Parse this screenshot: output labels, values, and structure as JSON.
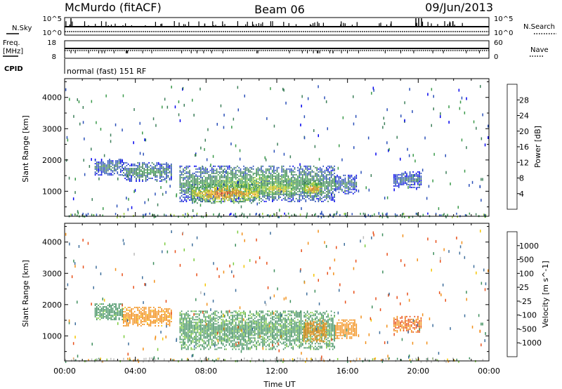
{
  "header": {
    "station": "McMurdo (fitACF)",
    "beam": "Beam 06",
    "date": "09/Jun/2013"
  },
  "status_panels": {
    "nsky_label": "N.Sky",
    "nsky_ticks": [
      "10^5",
      "10^0"
    ],
    "nsearch_label": "N.Search",
    "nsearch_ticks": [
      "10^5",
      "10^0"
    ],
    "freq_label_line1": "Freq.",
    "freq_label_line2": "[MHz]",
    "freq_ticks": [
      "18",
      "8"
    ],
    "nave_label": "Nave",
    "nave_ticks": [
      "60",
      "0"
    ],
    "cpid_label": "CPID",
    "cpid_text": "normal (fast) 151 RF"
  },
  "chart_data": [
    {
      "type": "heatmap",
      "panel": "power",
      "xlabel": "Time UT",
      "ylabel": "Slant Range [km]",
      "x_ticks": [
        "00:00",
        "04:00",
        "08:00",
        "12:00",
        "16:00",
        "20:00",
        "00:00"
      ],
      "x_range_hours": [
        0,
        24
      ],
      "y_ticks": [
        1000,
        2000,
        3000,
        4000
      ],
      "ylim": [
        200,
        4600
      ],
      "colorbar": {
        "label": "Power [dB]",
        "ticks": [
          4,
          8,
          12,
          16,
          20,
          24,
          28
        ],
        "range": [
          0,
          32
        ],
        "colors": [
          "#0000ee",
          "#2a4fb8",
          "#3d7f5a",
          "#3a9a4a",
          "#9acc33",
          "#e8c817",
          "#f7a21a",
          "#f07a1a",
          "#e8421f",
          "#e01414"
        ]
      },
      "features": [
        {
          "t_start": 1.7,
          "t_end": 3.3,
          "range_km": [
            1500,
            2000
          ],
          "power_db": 9
        },
        {
          "t_start": 3.3,
          "t_end": 6.0,
          "range_km": [
            1300,
            1900
          ],
          "power_db": 11
        },
        {
          "t_start": 6.5,
          "t_end": 15.3,
          "range_km": [
            650,
            1800
          ],
          "power_db": 14
        },
        {
          "t_start": 7.2,
          "t_end": 11.0,
          "range_km": [
            600,
            1200
          ],
          "power_db": 26
        },
        {
          "t_start": 11.0,
          "t_end": 13.0,
          "range_km": [
            800,
            1300
          ],
          "power_db": 20
        },
        {
          "t_start": 13.5,
          "t_end": 14.5,
          "range_km": [
            800,
            1300
          ],
          "power_db": 24
        },
        {
          "t_start": 15.3,
          "t_end": 16.5,
          "range_km": [
            900,
            1500
          ],
          "power_db": 9
        },
        {
          "t_start": 18.6,
          "t_end": 20.2,
          "range_km": [
            1100,
            1600
          ],
          "power_db": 7
        }
      ]
    },
    {
      "type": "heatmap",
      "panel": "velocity",
      "xlabel": "Time UT",
      "ylabel": "Slant Range [km]",
      "x_ticks": [
        "00:00",
        "04:00",
        "08:00",
        "12:00",
        "16:00",
        "20:00",
        "00:00"
      ],
      "x_range_hours": [
        0,
        24
      ],
      "y_ticks": [
        1000,
        2000,
        3000,
        4000
      ],
      "ylim": [
        200,
        4600
      ],
      "colorbar": {
        "label": "Velocity [m s^-1]",
        "ticks": [
          "1000",
          "500",
          "100",
          "25",
          "-25",
          "-100",
          "-500",
          "-1000"
        ],
        "colors": [
          "#1a34c8",
          "#3f6f9c",
          "#3f8f5e",
          "#7ccb3f",
          "#bcbcbc",
          "#f5c500",
          "#f2901a",
          "#e8501a",
          "#e01414"
        ]
      },
      "features": [
        {
          "t_start": 1.7,
          "t_end": 3.3,
          "range_km": [
            1500,
            2000
          ],
          "velocity": 100
        },
        {
          "t_start": 3.3,
          "t_end": 6.0,
          "range_km": [
            1300,
            1900
          ],
          "velocity": -100
        },
        {
          "t_start": 6.5,
          "t_end": 15.3,
          "range_km": [
            550,
            1800
          ],
          "velocity": 80
        },
        {
          "t_start": 13.5,
          "t_end": 14.8,
          "range_km": [
            800,
            1500
          ],
          "velocity": -200
        },
        {
          "t_start": 15.3,
          "t_end": 16.5,
          "range_km": [
            900,
            1500
          ],
          "velocity": -200
        },
        {
          "t_start": 18.6,
          "t_end": 20.2,
          "range_km": [
            1100,
            1600
          ],
          "velocity": -300
        }
      ]
    }
  ]
}
